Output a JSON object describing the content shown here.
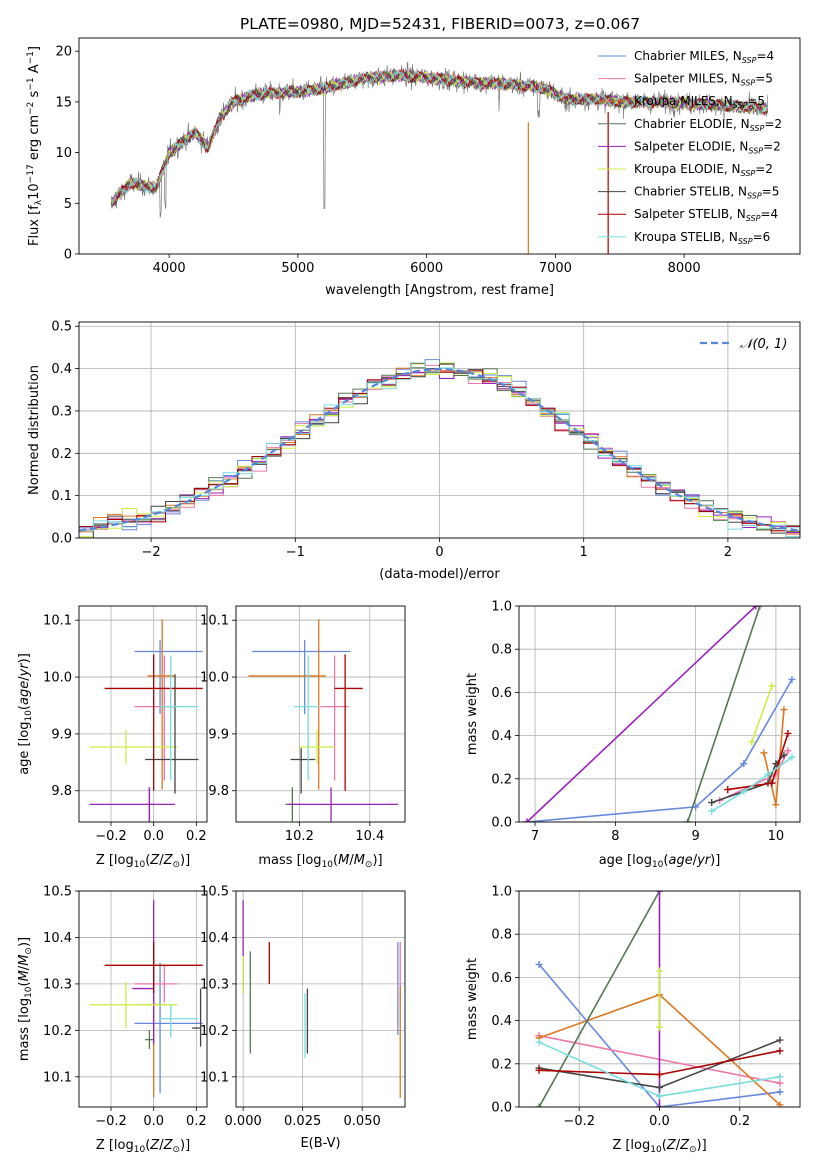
{
  "figure_title": "PLATE=0980, MJD=52431, FIBERID=0073, z=0.067",
  "series_colors": [
    "#6688dd",
    "#ee77aa",
    "#dd7722",
    "#557755",
    "#9922bb",
    "#ccee44",
    "#444444",
    "#aa0000",
    "#77dddd"
  ],
  "chart_data": [
    {
      "type": "line",
      "title": "PLATE=0980, MJD=52431, FIBERID=0073, z=0.067",
      "xlabel": "wavelength [Angstrom, rest frame]",
      "ylabel": "Flux [fλ10⁻¹⁷ erg cm⁻² s⁻¹ A⁻¹]",
      "xlim": [
        3300,
        8900
      ],
      "ylim": [
        0,
        21.3
      ],
      "xticks": [
        4000,
        5000,
        6000,
        7000,
        8000
      ],
      "yticks": [
        0,
        5,
        10,
        15,
        20
      ],
      "legend_loc": "right",
      "legend": [
        "Chabrier MILES, N_SSP=4",
        "Salpeter MILES, N_SSP=5",
        "Kroupa MILES, N_SSP=5",
        "Chabrier ELODIE, N_SSP=2",
        "Salpeter ELODIE, N_SSP=2",
        "Kroupa ELODIE, N_SSP=2",
        "Chabrier STELIB, N_SSP=5",
        "Salpeter STELIB, N_SSP=4",
        "Kroupa STELIB, N_SSP=6"
      ],
      "data_range": [
        3550,
        8650
      ],
      "continuum": [
        [
          3550,
          5
        ],
        [
          3700,
          7
        ],
        [
          3900,
          6.5
        ],
        [
          4000,
          10
        ],
        [
          4100,
          11
        ],
        [
          4200,
          12
        ],
        [
          4300,
          10.5
        ],
        [
          4400,
          13.5
        ],
        [
          4500,
          15
        ],
        [
          4700,
          15.8
        ],
        [
          5000,
          16
        ],
        [
          5200,
          16.3
        ],
        [
          5500,
          17.3
        ],
        [
          5800,
          17.6
        ],
        [
          6000,
          17.4
        ],
        [
          6300,
          17
        ],
        [
          6600,
          16.8
        ],
        [
          6900,
          16.4
        ],
        [
          7100,
          15.2
        ],
        [
          7300,
          15.3
        ],
        [
          7500,
          15
        ],
        [
          7800,
          15
        ],
        [
          8100,
          14.8
        ],
        [
          8400,
          14.6
        ],
        [
          8650,
          14.3
        ]
      ]
    },
    {
      "type": "step",
      "xlabel": "(data-model)/error",
      "ylabel": "Normed distribution",
      "xlim": [
        -2.5,
        2.5
      ],
      "ylim": [
        0,
        0.51
      ],
      "xticks": [
        -2,
        -1,
        0,
        1,
        2
      ],
      "yticks": [
        0,
        0.1,
        0.2,
        0.3,
        0.4,
        0.5
      ],
      "reference_curve": "N(0,1)",
      "legend": [
        "𝒩(0, 1)"
      ],
      "legend_loc": "upper right",
      "bin_width": 0.1
    },
    {
      "type": "errorbar",
      "xlabel": "Z [log10(Z/Z⊙)]",
      "ylabel": "age  [log10(age/yr)]",
      "xlim": [
        -0.35,
        0.25
      ],
      "ylim": [
        9.745,
        10.125
      ],
      "xticks": [
        -0.2,
        0.0,
        0.2
      ],
      "yticks": [
        9.8,
        9.9,
        10.0,
        10.1
      ],
      "points": [
        {
          "x": 0.03,
          "xerr": [
            0.12,
            0.2
          ],
          "y": 10.045,
          "yerr": [
            0.11,
            0.02
          ]
        },
        {
          "x": 0.05,
          "xerr": [
            0.14,
            0.06
          ],
          "y": 9.948,
          "yerr": [
            0.13,
            0.09
          ]
        },
        {
          "x": 0.04,
          "xerr": [
            0.07,
            0.06
          ],
          "y": 10.002,
          "yerr": [
            0.2,
            0.1
          ]
        },
        {
          "x": -0.02,
          "xerr": [
            0.02,
            0.02
          ],
          "y": 9.776,
          "yerr": [
            0.03,
            0.03
          ]
        },
        {
          "x": -0.02,
          "xerr": [
            0.28,
            0.12
          ],
          "y": 9.776,
          "yerr": [
            0.03,
            0.03
          ]
        },
        {
          "x": -0.13,
          "xerr": [
            0.17,
            0.24
          ],
          "y": 9.877,
          "yerr": [
            0.03,
            0.03
          ]
        },
        {
          "x": 0.1,
          "xerr": [
            0.14,
            0.11
          ],
          "y": 9.855,
          "yerr": [
            0.06,
            0.15
          ]
        },
        {
          "x": 0.0,
          "xerr": [
            0.23,
            0.23
          ],
          "y": 9.98,
          "yerr": [
            0.18,
            0.06
          ]
        },
        {
          "x": 0.08,
          "xerr": [
            0.05,
            0.13
          ],
          "y": 9.948,
          "yerr": [
            0.13,
            0.09
          ]
        }
      ]
    },
    {
      "type": "errorbar",
      "xlabel": "mass [log10(M/M⊙)]",
      "xlim": [
        0.02,
        0.5
      ],
      "ylim": [
        9.745,
        10.125
      ],
      "xticks": [
        0.2,
        0.4
      ],
      "xticklabels": [
        "10.2",
        "10.4"
      ],
      "yticks": [
        9.8,
        9.9,
        10.0,
        10.1
      ],
      "points": [
        {
          "x": 0.215,
          "xerr": [
            0.15,
            0.13
          ],
          "y": 10.045,
          "yerr": [
            0.11,
            0.02
          ]
        },
        {
          "x": 0.3,
          "xerr": [
            0.04,
            0.04
          ],
          "y": 9.948,
          "yerr": [
            0.13,
            0.09
          ]
        },
        {
          "x": 0.255,
          "xerr": [
            0.2,
            0.02
          ],
          "y": 10.002,
          "yerr": [
            0.2,
            0.1
          ]
        },
        {
          "x": 0.18,
          "xerr": [
            0.02,
            0.02
          ],
          "y": 9.776,
          "yerr": [
            0.03,
            0.03
          ]
        },
        {
          "x": 0.29,
          "xerr": [
            0.12,
            0.19
          ],
          "y": 9.776,
          "yerr": [
            0.03,
            0.03
          ]
        },
        {
          "x": 0.25,
          "xerr": [
            0.05,
            0.05
          ],
          "y": 9.877,
          "yerr": [
            0.03,
            0.03
          ]
        },
        {
          "x": 0.205,
          "xerr": [
            0.03,
            0.04
          ],
          "y": 9.855,
          "yerr": [
            0.06,
            0.02
          ]
        },
        {
          "x": 0.33,
          "xerr": [
            0.03,
            0.05
          ],
          "y": 9.98,
          "yerr": [
            0.18,
            0.06
          ]
        },
        {
          "x": 0.225,
          "xerr": [
            0.04,
            0.03
          ],
          "y": 9.948,
          "yerr": [
            0.13,
            0.09
          ]
        }
      ]
    },
    {
      "type": "line",
      "xlabel": "age  [log10(age/yr)]",
      "ylabel": "mass weight",
      "xlim": [
        6.8,
        10.3
      ],
      "ylim": [
        0,
        1.0
      ],
      "xticks": [
        7,
        8,
        9,
        10
      ],
      "yticks": [
        0,
        0.2,
        0.4,
        0.6,
        0.8,
        1.0
      ],
      "series": [
        {
          "x": [
            6.9,
            9.0,
            9.6,
            10.2
          ],
          "y": [
            0.0,
            0.07,
            0.27,
            0.66
          ]
        },
        {
          "x": [
            9.3,
            10.0,
            10.15
          ],
          "y": [
            0.1,
            0.22,
            0.33
          ]
        },
        {
          "x": [
            9.85,
            10.0,
            10.1
          ],
          "y": [
            0.32,
            0.08,
            0.52
          ]
        },
        {
          "x": [
            8.9,
            9.8
          ],
          "y": [
            0.0,
            1.0
          ]
        },
        {
          "x": [
            6.9,
            9.75
          ],
          "y": [
            0.0,
            1.0
          ]
        },
        {
          "x": [
            9.7,
            9.95
          ],
          "y": [
            0.37,
            0.63
          ]
        },
        {
          "x": [
            9.2,
            9.9,
            10.0,
            10.1
          ],
          "y": [
            0.09,
            0.18,
            0.27,
            0.31
          ]
        },
        {
          "x": [
            9.4,
            9.95,
            10.15
          ],
          "y": [
            0.15,
            0.18,
            0.41
          ]
        },
        {
          "x": [
            9.2,
            9.6,
            9.9,
            10.2
          ],
          "y": [
            0.05,
            0.14,
            0.22,
            0.3
          ]
        }
      ]
    },
    {
      "type": "errorbar",
      "xlabel": "Z [log10(Z/Z⊙)]",
      "ylabel": "mass [log10(M/M⊙)]",
      "xlim": [
        -0.35,
        0.25
      ],
      "ylim": [
        10.035,
        10.5
      ],
      "xticks": [
        -0.2,
        0.0,
        0.2
      ],
      "yticks": [
        10.1,
        10.2,
        10.3,
        10.4,
        10.5
      ],
      "points": [
        {
          "x": 0.03,
          "xerr": [
            0.12,
            0.2
          ],
          "y": 10.215,
          "yerr": [
            0.15,
            0.13
          ]
        },
        {
          "x": 0.05,
          "xerr": [
            0.14,
            0.06
          ],
          "y": 10.3,
          "yerr": [
            0.04,
            0.04
          ]
        },
        {
          "x": 0.0,
          "xerr": [
            0.07,
            0.06
          ],
          "y": 10.255,
          "yerr": [
            0.2,
            0.02
          ]
        },
        {
          "x": -0.02,
          "xerr": [
            0.02,
            0.02
          ],
          "y": 10.18,
          "yerr": [
            0.02,
            0.02
          ]
        },
        {
          "x": 0.0,
          "xerr": [
            0.1,
            0.0
          ],
          "y": 10.29,
          "yerr": [
            0.12,
            0.19
          ]
        },
        {
          "x": -0.13,
          "xerr": [
            0.17,
            0.24
          ],
          "y": 10.255,
          "yerr": [
            0.05,
            0.05
          ]
        },
        {
          "x": 0.22,
          "xerr": [
            0.04,
            0.0
          ],
          "y": 10.205,
          "yerr": [
            0.04,
            0.085
          ]
        },
        {
          "x": 0.0,
          "xerr": [
            0.23,
            0.23
          ],
          "y": 10.34,
          "yerr": [
            0.06,
            0.05
          ]
        },
        {
          "x": 0.08,
          "xerr": [
            0.05,
            0.13
          ],
          "y": 10.225,
          "yerr": [
            0.04,
            0.03
          ]
        }
      ]
    },
    {
      "type": "errorbar",
      "xlabel": "E(B-V)",
      "xlim": [
        -0.003,
        0.068
      ],
      "ylim": [
        10.035,
        10.5
      ],
      "xticks": [
        0.0,
        0.025,
        0.05
      ],
      "xticklabels": [
        "0.000",
        "0.025",
        "0.050"
      ],
      "yticks": [
        10.1,
        10.2,
        10.3,
        10.4,
        10.5
      ],
      "points": [
        {
          "x": 0.065,
          "y": 10.29,
          "yerr": [
            0.1,
            0.1
          ]
        },
        {
          "x": 0.066,
          "y": 10.3,
          "yerr": [
            0.04,
            0.09
          ]
        },
        {
          "x": 0.066,
          "y": 10.255,
          "yerr": [
            0.2,
            0.04
          ]
        },
        {
          "x": 0.003,
          "y": 10.26,
          "yerr": [
            0.11,
            0.11
          ]
        },
        {
          "x": 0.0,
          "y": 10.34,
          "yerr": [
            0.06,
            0.14
          ]
        },
        {
          "x": 0.0,
          "y": 10.32,
          "yerr": [
            0.04,
            0.04
          ]
        },
        {
          "x": 0.027,
          "y": 10.22,
          "yerr": [
            0.07,
            0.07
          ]
        },
        {
          "x": 0.011,
          "y": 10.34,
          "yerr": [
            0.04,
            0.05
          ]
        },
        {
          "x": 0.026,
          "y": 10.21,
          "yerr": [
            0.07,
            0.07
          ]
        }
      ]
    },
    {
      "type": "line",
      "xlabel": "Z [log10(Z/Z⊙)]",
      "ylabel": "mass weight",
      "xlim": [
        -0.35,
        0.35
      ],
      "ylim": [
        0,
        1.0
      ],
      "xticks": [
        -0.2,
        0.0,
        0.2
      ],
      "yticks": [
        0,
        0.2,
        0.4,
        0.6,
        0.8,
        1.0
      ],
      "series": [
        {
          "x": [
            -0.3,
            0.0,
            0.3
          ],
          "y": [
            0.66,
            0.0,
            0.07
          ]
        },
        {
          "x": [
            -0.3,
            0.3
          ],
          "y": [
            0.33,
            0.11
          ]
        },
        {
          "x": [
            -0.3,
            0.0,
            0.3
          ],
          "y": [
            0.32,
            0.52,
            0.01
          ]
        },
        {
          "x": [
            -0.3,
            0.0
          ],
          "y": [
            0.0,
            1.0
          ]
        },
        {
          "x": [
            0.0,
            0.0
          ],
          "y": [
            0.0,
            1.0
          ]
        },
        {
          "x": [
            0.0,
            0.0
          ],
          "y": [
            0.37,
            0.63
          ]
        },
        {
          "x": [
            -0.3,
            0.0,
            0.3
          ],
          "y": [
            0.18,
            0.09,
            0.31
          ]
        },
        {
          "x": [
            -0.3,
            0.0,
            0.3
          ],
          "y": [
            0.17,
            0.15,
            0.26
          ]
        },
        {
          "x": [
            -0.3,
            0.0,
            0.3
          ],
          "y": [
            0.3,
            0.05,
            0.14
          ]
        }
      ]
    }
  ]
}
